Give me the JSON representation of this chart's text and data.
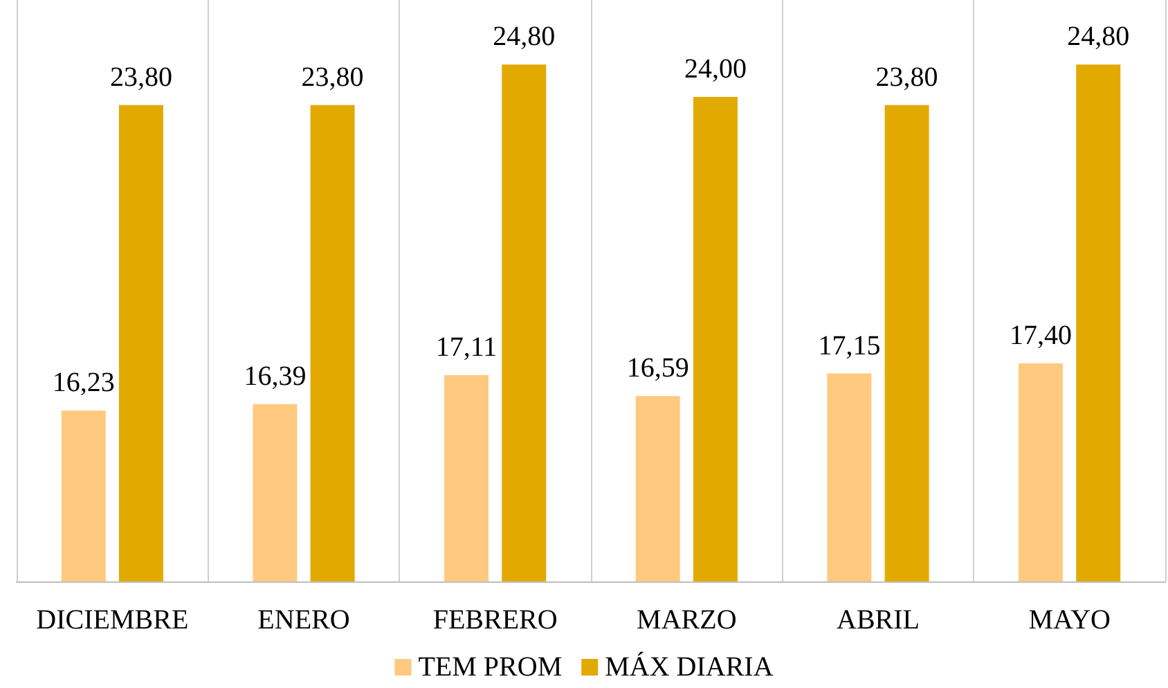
{
  "chart_data": {
    "type": "bar",
    "categories": [
      "DICIEMBRE",
      "ENERO",
      "FEBRERO",
      "MARZO",
      "ABRIL",
      "MAYO"
    ],
    "series": [
      {
        "name": "TEM PROM",
        "color": "#ffca7f",
        "values": [
          16.23,
          16.39,
          17.11,
          16.59,
          17.15,
          17.4
        ],
        "value_labels": [
          "16,23",
          "16,39",
          "17,11",
          "16,59",
          "17,15",
          "17,40"
        ]
      },
      {
        "name": "MÁX DIARIA",
        "color": "#e2aa00",
        "values": [
          23.8,
          23.8,
          24.8,
          24.0,
          23.8,
          24.8
        ],
        "value_labels": [
          "23,80",
          "23,80",
          "24,80",
          "24,00",
          "23,80",
          "24,80"
        ]
      }
    ],
    "ylim": [
      12,
      26.4
    ],
    "tick_labels": "x",
    "grid": "x",
    "legend": "bottom"
  }
}
